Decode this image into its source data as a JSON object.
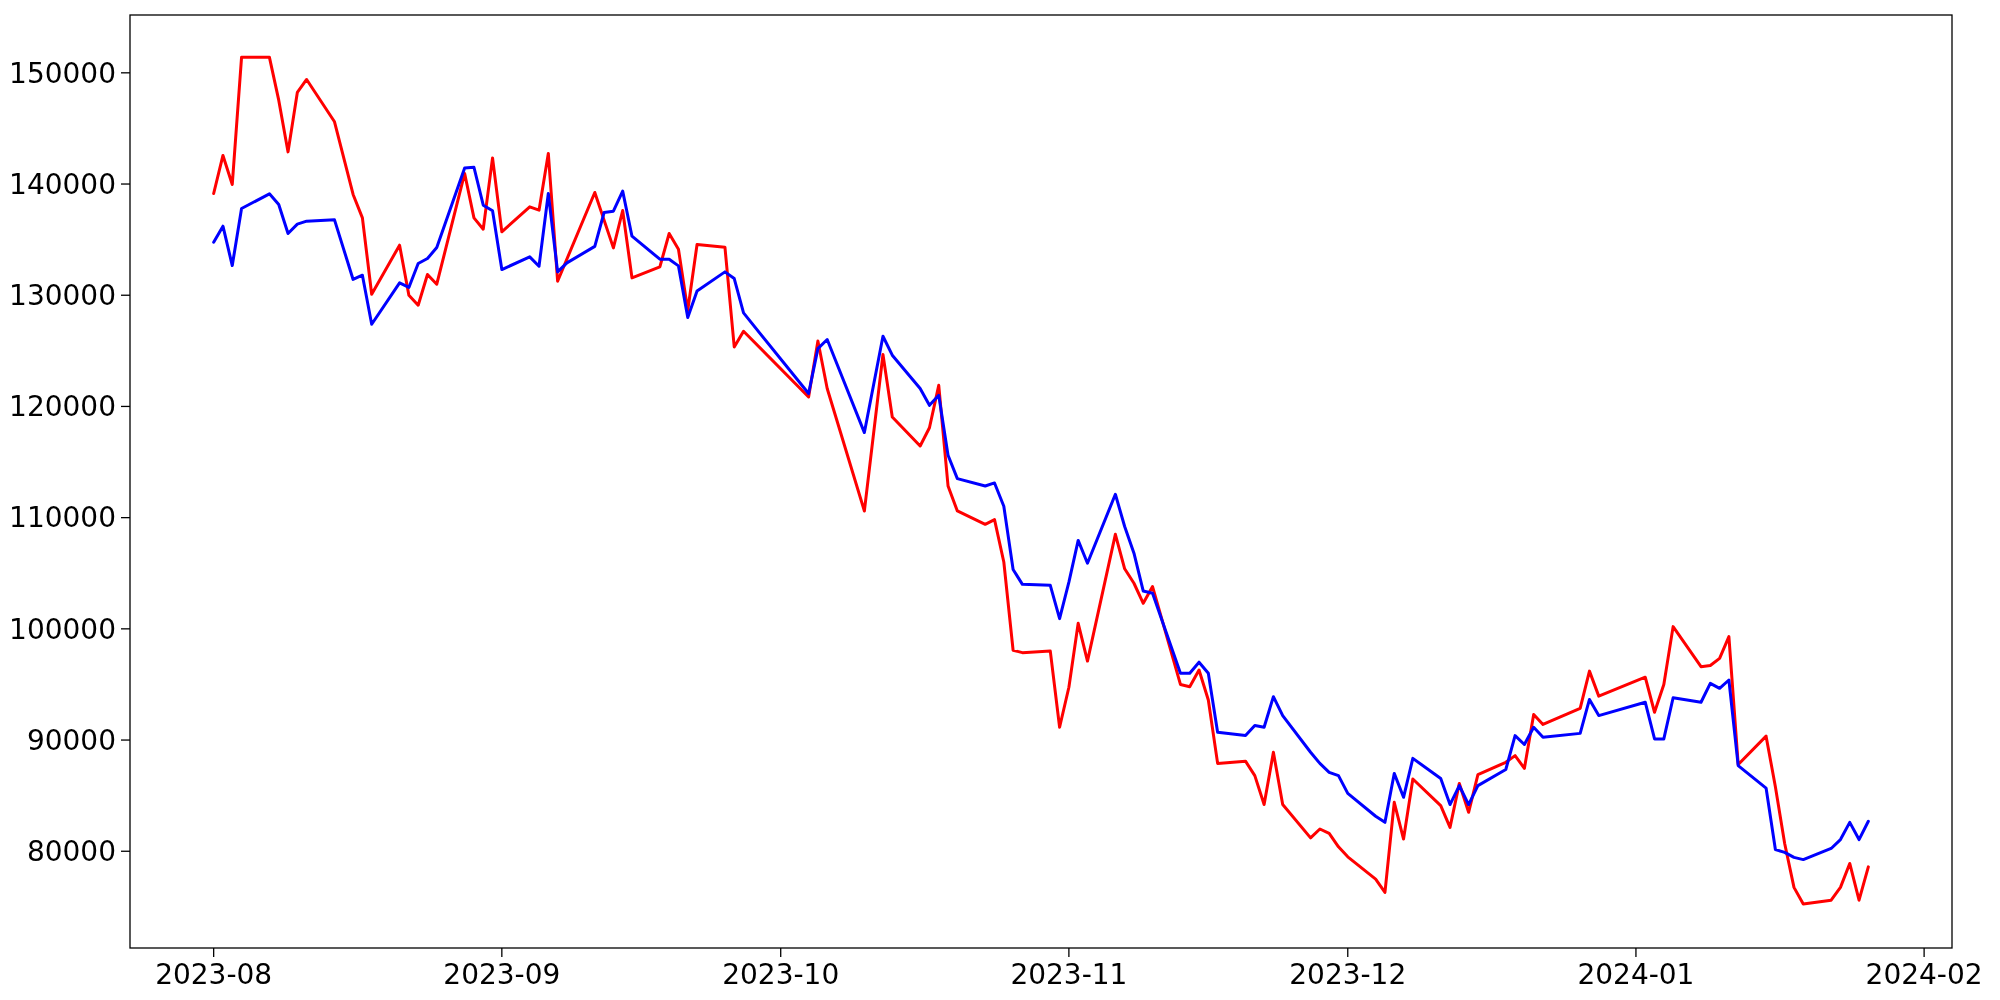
{
  "chart_data": {
    "type": "line",
    "xlim": [
      "2023-07-23",
      "2024-02-04"
    ],
    "ylim": [
      71300,
      155200
    ],
    "xticks": [
      {
        "value": "2023-08-01",
        "label": "2023-08"
      },
      {
        "value": "2023-09-01",
        "label": "2023-09"
      },
      {
        "value": "2023-10-01",
        "label": "2023-10"
      },
      {
        "value": "2023-11-01",
        "label": "2023-11"
      },
      {
        "value": "2023-12-01",
        "label": "2023-12"
      },
      {
        "value": "2024-01-01",
        "label": "2024-01"
      },
      {
        "value": "2024-02-01",
        "label": "2024-02"
      }
    ],
    "yticks": [
      80000,
      90000,
      100000,
      110000,
      120000,
      130000,
      140000,
      150000
    ],
    "grid": false,
    "line_style": "solid",
    "marker": "none",
    "series": [
      {
        "color": "#ff0000",
        "x": [
          "2023-08-01",
          "2023-08-02",
          "2023-08-03",
          "2023-08-04",
          "2023-08-07",
          "2023-08-08",
          "2023-08-09",
          "2023-08-10",
          "2023-08-11",
          "2023-08-14",
          "2023-08-16",
          "2023-08-17",
          "2023-08-18",
          "2023-08-21",
          "2023-08-22",
          "2023-08-23",
          "2023-08-24",
          "2023-08-25",
          "2023-08-28",
          "2023-08-29",
          "2023-08-30",
          "2023-08-31",
          "2023-09-01",
          "2023-09-04",
          "2023-09-05",
          "2023-09-06",
          "2023-09-07",
          "2023-09-11",
          "2023-09-13",
          "2023-09-14",
          "2023-09-15",
          "2023-09-18",
          "2023-09-19",
          "2023-09-20",
          "2023-09-21",
          "2023-09-22",
          "2023-09-25",
          "2023-09-26",
          "2023-09-27",
          "2023-10-04",
          "2023-10-05",
          "2023-10-06",
          "2023-10-10",
          "2023-10-12",
          "2023-10-13",
          "2023-10-16",
          "2023-10-17",
          "2023-10-18",
          "2023-10-19",
          "2023-10-20",
          "2023-10-23",
          "2023-10-24",
          "2023-10-25",
          "2023-10-26",
          "2023-10-27",
          "2023-10-30",
          "2023-10-31",
          "2023-11-01",
          "2023-11-02",
          "2023-11-03",
          "2023-11-06",
          "2023-11-07",
          "2023-11-08",
          "2023-11-09",
          "2023-11-10",
          "2023-11-13",
          "2023-11-14",
          "2023-11-15",
          "2023-11-16",
          "2023-11-17",
          "2023-11-20",
          "2023-11-21",
          "2023-11-22",
          "2023-11-23",
          "2023-11-24",
          "2023-11-27",
          "2023-11-28",
          "2023-11-29",
          "2023-11-30",
          "2023-12-01",
          "2023-12-04",
          "2023-12-05",
          "2023-12-06",
          "2023-12-07",
          "2023-12-08",
          "2023-12-11",
          "2023-12-12",
          "2023-12-13",
          "2023-12-14",
          "2023-12-15",
          "2023-12-18",
          "2023-12-19",
          "2023-12-20",
          "2023-12-21",
          "2023-12-22",
          "2023-12-26",
          "2023-12-27",
          "2023-12-28",
          "2024-01-02",
          "2024-01-03",
          "2024-01-04",
          "2024-01-05",
          "2024-01-08",
          "2024-01-09",
          "2024-01-10",
          "2024-01-11",
          "2024-01-12",
          "2024-01-15",
          "2024-01-16",
          "2024-01-17",
          "2024-01-18",
          "2024-01-19",
          "2024-01-22",
          "2024-01-23",
          "2024-01-24",
          "2024-01-25",
          "2024-01-26"
        ],
        "values": [
          139150,
          142570,
          139960,
          151390,
          151390,
          147540,
          142890,
          148240,
          149400,
          145600,
          139060,
          136960,
          130090,
          134500,
          130000,
          129100,
          131860,
          130990,
          140950,
          136960,
          135940,
          142350,
          135700,
          137950,
          137650,
          142750,
          131260,
          139240,
          134260,
          137620,
          131560,
          132550,
          135550,
          134140,
          128650,
          134560,
          134320,
          125350,
          126760,
          120850,
          125890,
          121610,
          110600,
          124670,
          119050,
          116440,
          118080,
          121900,
          112850,
          110600,
          109400,
          109820,
          106010,
          98070,
          97860,
          98000,
          91150,
          94750,
          100500,
          97100,
          108500,
          105400,
          104100,
          102300,
          103800,
          95000,
          94800,
          96300,
          93600,
          87900,
          88100,
          86800,
          84200,
          88900,
          84200,
          81200,
          82000,
          81600,
          80400,
          79500,
          77500,
          76300,
          84400,
          81100,
          86500,
          84100,
          82150,
          86100,
          83500,
          86900,
          88000,
          88600,
          87450,
          92300,
          91400,
          92850,
          96200,
          93950,
          95650,
          92500,
          95000,
          100200,
          96600,
          96700,
          97350,
          99300,
          87800,
          90350,
          85800,
          80700,
          76750,
          75250,
          75600,
          76750,
          78900,
          75600,
          78600
        ]
      },
      {
        "color": "#0000ff",
        "x": [
          "2023-08-01",
          "2023-08-02",
          "2023-08-03",
          "2023-08-04",
          "2023-08-07",
          "2023-08-08",
          "2023-08-09",
          "2023-08-10",
          "2023-08-11",
          "2023-08-14",
          "2023-08-16",
          "2023-08-17",
          "2023-08-18",
          "2023-08-21",
          "2023-08-22",
          "2023-08-23",
          "2023-08-24",
          "2023-08-25",
          "2023-08-28",
          "2023-08-29",
          "2023-08-30",
          "2023-08-31",
          "2023-09-01",
          "2023-09-04",
          "2023-09-05",
          "2023-09-06",
          "2023-09-07",
          "2023-09-08",
          "2023-09-11",
          "2023-09-12",
          "2023-09-13",
          "2023-09-14",
          "2023-09-15",
          "2023-09-18",
          "2023-09-19",
          "2023-09-20",
          "2023-09-21",
          "2023-09-22",
          "2023-09-25",
          "2023-09-26",
          "2023-09-27",
          "2023-10-04",
          "2023-10-05",
          "2023-10-06",
          "2023-10-10",
          "2023-10-12",
          "2023-10-13",
          "2023-10-16",
          "2023-10-17",
          "2023-10-18",
          "2023-10-19",
          "2023-10-20",
          "2023-10-23",
          "2023-10-24",
          "2023-10-25",
          "2023-10-26",
          "2023-10-27",
          "2023-10-30",
          "2023-10-31",
          "2023-11-01",
          "2023-11-02",
          "2023-11-03",
          "2023-11-06",
          "2023-11-07",
          "2023-11-08",
          "2023-11-09",
          "2023-11-10",
          "2023-11-13",
          "2023-11-14",
          "2023-11-15",
          "2023-11-16",
          "2023-11-17",
          "2023-11-20",
          "2023-11-21",
          "2023-11-22",
          "2023-11-23",
          "2023-11-24",
          "2023-11-27",
          "2023-11-28",
          "2023-11-29",
          "2023-11-30",
          "2023-12-01",
          "2023-12-04",
          "2023-12-05",
          "2023-12-06",
          "2023-12-07",
          "2023-12-08",
          "2023-12-11",
          "2023-12-12",
          "2023-12-13",
          "2023-12-14",
          "2023-12-15",
          "2023-12-18",
          "2023-12-19",
          "2023-12-20",
          "2023-12-21",
          "2023-12-22",
          "2023-12-26",
          "2023-12-27",
          "2023-12-28",
          "2024-01-02",
          "2024-01-03",
          "2024-01-04",
          "2024-01-05",
          "2024-01-08",
          "2024-01-09",
          "2024-01-10",
          "2024-01-11",
          "2024-01-12",
          "2024-01-15",
          "2024-01-16",
          "2024-01-17",
          "2024-01-18",
          "2024-01-19",
          "2024-01-22",
          "2024-01-23",
          "2024-01-24",
          "2024-01-25",
          "2024-01-26"
        ],
        "values": [
          134770,
          136210,
          132670,
          137800,
          139120,
          138160,
          135550,
          136390,
          136660,
          136780,
          131420,
          131800,
          127390,
          131110,
          130700,
          132850,
          133300,
          134290,
          141450,
          141510,
          138100,
          137590,
          132310,
          133450,
          132610,
          139150,
          132100,
          132910,
          134390,
          137440,
          137560,
          139360,
          135310,
          133240,
          133240,
          132640,
          128000,
          130390,
          132100,
          131500,
          128410,
          121160,
          125200,
          126020,
          117650,
          126310,
          124610,
          121610,
          120100,
          121000,
          115610,
          113510,
          112850,
          113120,
          111020,
          105330,
          104000,
          103910,
          100920,
          104200,
          107950,
          105900,
          112100,
          109200,
          106800,
          103400,
          103200,
          96000,
          96000,
          97000,
          96000,
          90700,
          90400,
          91300,
          91150,
          93900,
          92200,
          88900,
          87900,
          87100,
          86800,
          85200,
          83150,
          82600,
          87000,
          84850,
          88350,
          86550,
          84200,
          85900,
          84200,
          85900,
          87350,
          90400,
          89600,
          91150,
          90250,
          90600,
          93650,
          92200,
          93400,
          90100,
          90100,
          93800,
          93400,
          95100,
          94650,
          95400,
          87700,
          85680,
          80150,
          79900,
          79450,
          79250,
          80250,
          81050,
          82600,
          81050,
          82700
        ]
      }
    ]
  }
}
